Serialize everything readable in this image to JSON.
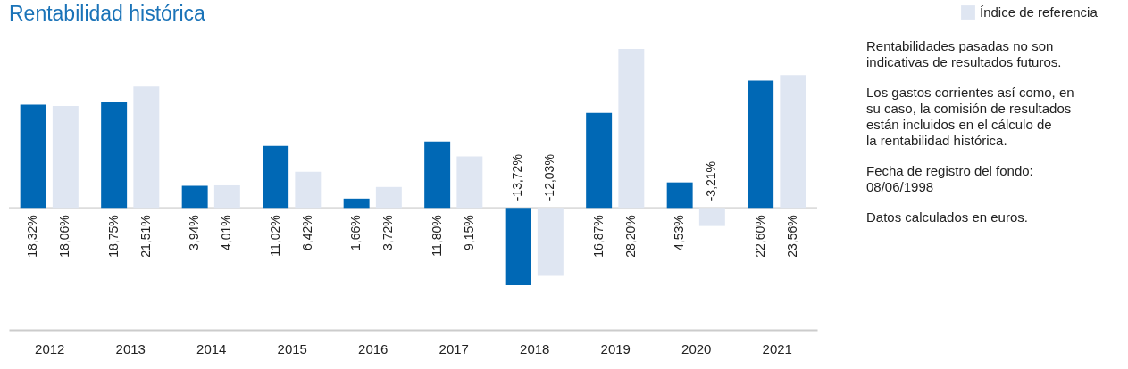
{
  "chart_data": {
    "type": "bar",
    "title": "Rentabilidad histórica",
    "categories": [
      "2012",
      "2013",
      "2014",
      "2015",
      "2016",
      "2017",
      "2018",
      "2019",
      "2020",
      "2021"
    ],
    "series": [
      {
        "color": "#0068b5",
        "values": [
          18.32,
          18.75,
          3.94,
          11.02,
          1.66,
          11.8,
          -13.72,
          16.87,
          4.53,
          22.6
        ],
        "value_labels": [
          "18,32%",
          "18,75%",
          "3,94%",
          "11,02%",
          "1,66%",
          "11,80%",
          "-13,72%",
          "16,87%",
          "4,53%",
          "22,60%"
        ]
      },
      {
        "name": "Índice de referencia",
        "color": "#dfe6f2",
        "values": [
          18.06,
          21.51,
          4.01,
          6.42,
          3.72,
          9.15,
          -12.03,
          28.2,
          -3.21,
          23.56
        ],
        "value_labels": [
          "18,06%",
          "21,51%",
          "4,01%",
          "6,42%",
          "3,72%",
          "9,15%",
          "-12,03%",
          "28,20%",
          "-3,21%",
          "23,56%"
        ]
      }
    ],
    "legend": "top right",
    "grid": false,
    "annotations": [
      "Rentabilidades pasadas no son indicativas de resultados futuros.",
      "Los gastos corrientes así como, en su caso, la comisión de resultados están incluidos en el cálculo de la rentabilidad histórica.",
      "Fecha de registro del fondo: 08/06/1998",
      "Datos calculados en euros."
    ]
  }
}
